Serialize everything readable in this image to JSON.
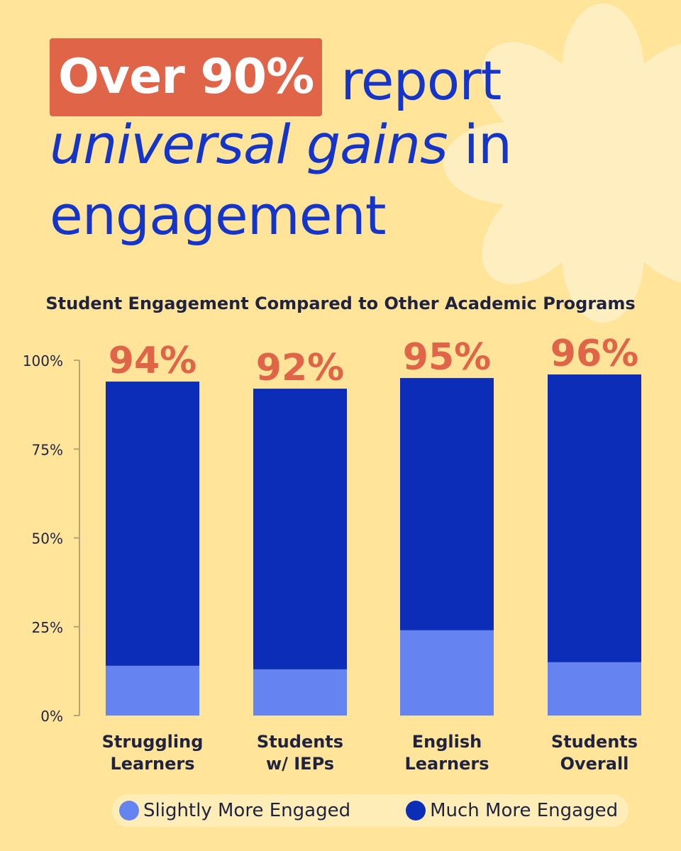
{
  "headline": {
    "highlight": "Over 90%",
    "line1_rest": "report",
    "line2_emph": "universal gains",
    "line2_rest": "in",
    "line3": "engagement"
  },
  "colors": {
    "background": "#FFE49A",
    "flower": "#FFEFC0",
    "headline": "#1535C8",
    "highlight_bg": "#E06448",
    "total_label": "#E06448",
    "slightly": "#6584F2",
    "much": "#0C2DB8",
    "axis_text": "#1F2340"
  },
  "legend": {
    "items": [
      {
        "label": "Slightly More Engaged",
        "color": "#6584F2"
      },
      {
        "label": "Much More Engaged",
        "color": "#0C2DB8"
      }
    ]
  },
  "chart_data": {
    "type": "bar",
    "stacked": true,
    "title": "Student Engagement Compared to Other Academic Programs",
    "categories": [
      [
        "Struggling",
        "Learners"
      ],
      [
        "Students",
        "w/ IEPs"
      ],
      [
        "English",
        "Learners"
      ],
      [
        "Students",
        "Overall"
      ]
    ],
    "series": [
      {
        "name": "Slightly More Engaged",
        "color": "#6584F2",
        "values": [
          14,
          13,
          24,
          15
        ]
      },
      {
        "name": "Much More Engaged",
        "color": "#0C2DB8",
        "values": [
          80,
          79,
          71,
          81
        ]
      }
    ],
    "totals": [
      "94%",
      "92%",
      "95%",
      "96%"
    ],
    "yticks": [
      "0%",
      "25%",
      "50%",
      "75%",
      "100%"
    ],
    "ylim": [
      0,
      100
    ],
    "grid": false,
    "legend_position": "bottom"
  }
}
